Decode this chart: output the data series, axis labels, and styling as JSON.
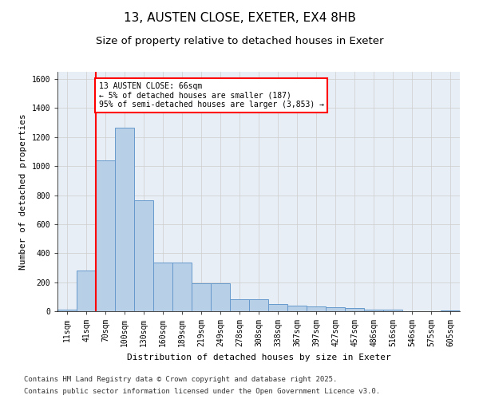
{
  "title_line1": "13, AUSTEN CLOSE, EXETER, EX4 8HB",
  "title_line2": "Size of property relative to detached houses in Exeter",
  "xlabel": "Distribution of detached houses by size in Exeter",
  "ylabel": "Number of detached properties",
  "categories": [
    "11sqm",
    "41sqm",
    "70sqm",
    "100sqm",
    "130sqm",
    "160sqm",
    "189sqm",
    "219sqm",
    "249sqm",
    "278sqm",
    "308sqm",
    "338sqm",
    "367sqm",
    "397sqm",
    "427sqm",
    "457sqm",
    "486sqm",
    "516sqm",
    "546sqm",
    "575sqm",
    "605sqm"
  ],
  "values": [
    10,
    280,
    1040,
    1265,
    765,
    335,
    335,
    190,
    190,
    80,
    80,
    50,
    40,
    35,
    25,
    20,
    12,
    10,
    2,
    2,
    8
  ],
  "bar_color": "#b8cfe8",
  "bar_edge_color": "#6699cc",
  "annotation_text": "13 AUSTEN CLOSE: 66sqm\n← 5% of detached houses are smaller (187)\n95% of semi-detached houses are larger (3,853) →",
  "annotation_box_color": "white",
  "annotation_box_edge": "red",
  "red_line_color": "red",
  "ylim": [
    0,
    1650
  ],
  "yticks": [
    0,
    200,
    400,
    600,
    800,
    1000,
    1200,
    1400,
    1600
  ],
  "grid_color": "#cccccc",
  "bg_color": "#e8eef5",
  "footer_line1": "Contains HM Land Registry data © Crown copyright and database right 2025.",
  "footer_line2": "Contains public sector information licensed under the Open Government Licence v3.0.",
  "title_fontsize": 11,
  "subtitle_fontsize": 9.5,
  "axis_label_fontsize": 8,
  "tick_fontsize": 7,
  "footer_fontsize": 6.5
}
